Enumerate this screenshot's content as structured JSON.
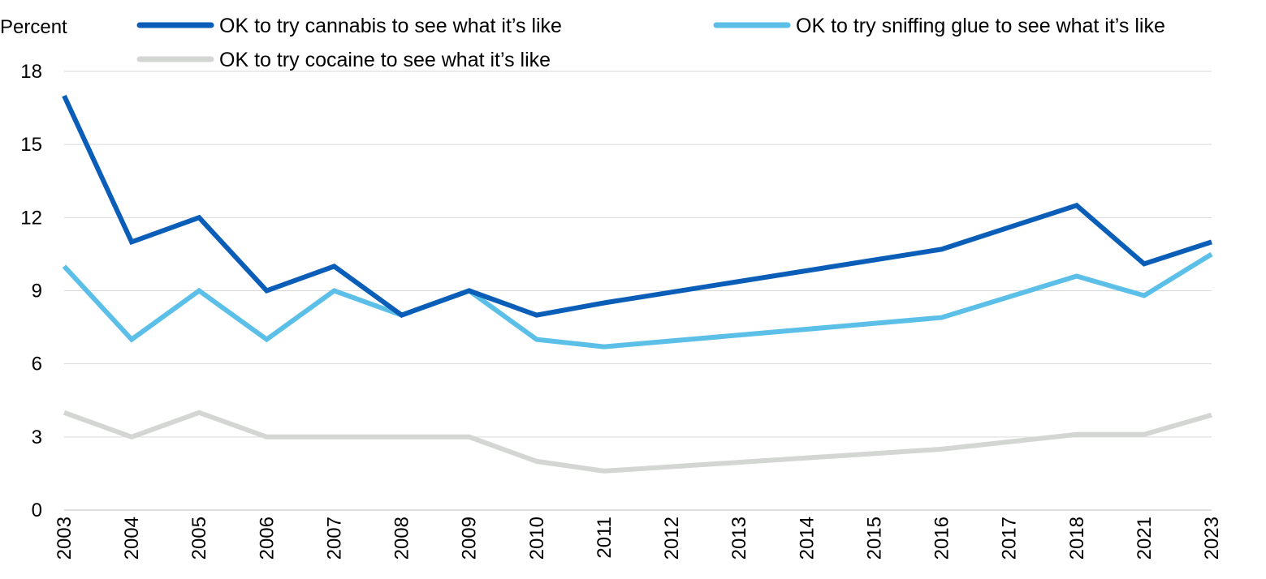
{
  "chart_data": {
    "type": "line",
    "title": "",
    "xlabel": "",
    "ylabel": "Percent",
    "ylim": [
      0,
      18
    ],
    "yticks": [
      0,
      3,
      6,
      9,
      12,
      15,
      18
    ],
    "x": [
      2003,
      2004,
      2005,
      2006,
      2007,
      2008,
      2009,
      2010,
      2011,
      2012,
      2013,
      2014,
      2015,
      2016,
      2017,
      2018,
      2021,
      2023
    ],
    "x_tick_labels": [
      "2003",
      "2004",
      "2005",
      "2006",
      "2007",
      "2008",
      "2009",
      "2010",
      "2011",
      "2012",
      "2013",
      "2014",
      "2015",
      "2016",
      "2017",
      "2018",
      "2021",
      "2023"
    ],
    "x_axis_note": "category axis: years evenly spaced, 2018–2021 and 2021–2023 gaps wider",
    "grid": "horizontal",
    "legend_position": "top",
    "series": [
      {
        "name": "OK to try cannabis to see what it’s like",
        "color": "#0a5eb8",
        "points": [
          {
            "x": 2003,
            "y": 17
          },
          {
            "x": 2004,
            "y": 11
          },
          {
            "x": 2005,
            "y": 12
          },
          {
            "x": 2006,
            "y": 9
          },
          {
            "x": 2007,
            "y": 10
          },
          {
            "x": 2008,
            "y": 8
          },
          {
            "x": 2009,
            "y": 9
          },
          {
            "x": 2010,
            "y": 8
          },
          {
            "x": 2011,
            "y": 8.5
          },
          {
            "x": 2016,
            "y": 10.7
          },
          {
            "x": 2018,
            "y": 12.5
          },
          {
            "x": 2021,
            "y": 10.1
          },
          {
            "x": 2023,
            "y": 11
          }
        ]
      },
      {
        "name": "OK to try sniffing glue to see what it’s like",
        "color": "#5bbfe8",
        "points": [
          {
            "x": 2003,
            "y": 10
          },
          {
            "x": 2004,
            "y": 7
          },
          {
            "x": 2005,
            "y": 9
          },
          {
            "x": 2006,
            "y": 7
          },
          {
            "x": 2007,
            "y": 9
          },
          {
            "x": 2008,
            "y": 8
          },
          {
            "x": 2009,
            "y": 9
          },
          {
            "x": 2010,
            "y": 7
          },
          {
            "x": 2011,
            "y": 6.7
          },
          {
            "x": 2016,
            "y": 7.9
          },
          {
            "x": 2018,
            "y": 9.6
          },
          {
            "x": 2021,
            "y": 8.8
          },
          {
            "x": 2023,
            "y": 10.5
          }
        ]
      },
      {
        "name": "OK to try cocaine to see what it’s like",
        "color": "#d3d6d3",
        "points": [
          {
            "x": 2003,
            "y": 4
          },
          {
            "x": 2004,
            "y": 3
          },
          {
            "x": 2005,
            "y": 4
          },
          {
            "x": 2006,
            "y": 3
          },
          {
            "x": 2007,
            "y": 3
          },
          {
            "x": 2008,
            "y": 3
          },
          {
            "x": 2009,
            "y": 3
          },
          {
            "x": 2010,
            "y": 2
          },
          {
            "x": 2011,
            "y": 1.6
          },
          {
            "x": 2016,
            "y": 2.5
          },
          {
            "x": 2018,
            "y": 3.1
          },
          {
            "x": 2021,
            "y": 3.1
          },
          {
            "x": 2023,
            "y": 3.9
          }
        ]
      }
    ]
  }
}
